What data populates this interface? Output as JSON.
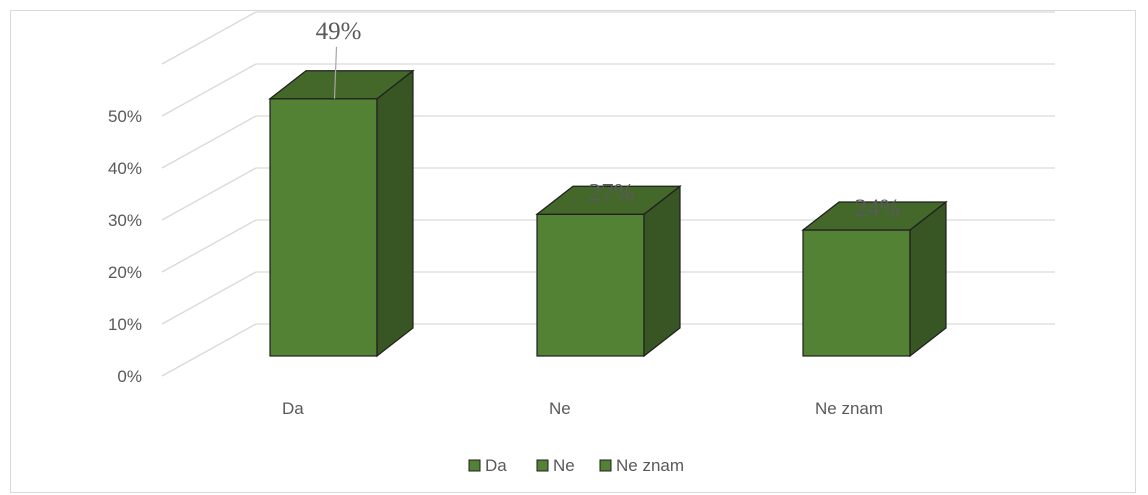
{
  "chart_data": {
    "type": "bar",
    "categories": [
      "Da",
      "Ne",
      "Ne znam"
    ],
    "values": [
      49,
      27,
      24
    ],
    "value_labels": [
      "49%",
      "27%",
      "24%"
    ],
    "y_ticks": [
      "0%",
      "10%",
      "20%",
      "30%",
      "40%",
      "50%"
    ],
    "ylim": [
      0,
      60
    ],
    "grid": true,
    "legend_position": "bottom",
    "legend": [
      "Da",
      "Ne",
      "Ne znam"
    ],
    "colors": {
      "bar_front": "#548235",
      "bar_side": "#375623",
      "bar_top": "#43682a",
      "outline": "#1f1f1f",
      "grid": "#d9d9d9"
    }
  }
}
